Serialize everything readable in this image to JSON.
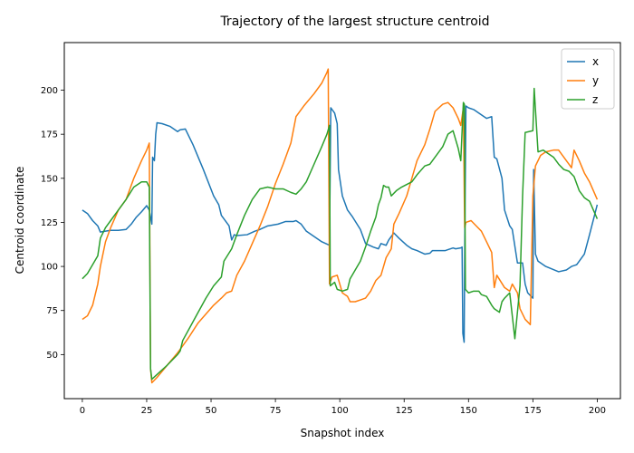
{
  "chart_data": {
    "type": "line",
    "title": "Trajectory of the largest structure centroid",
    "xlabel": "Snapshot index",
    "ylabel": "Centroid coordinate",
    "xlim": [
      -7,
      209
    ],
    "ylim": [
      25,
      227
    ],
    "xticks": [
      0,
      25,
      50,
      75,
      100,
      125,
      150,
      175,
      200
    ],
    "yticks": [
      50,
      75,
      100,
      125,
      150,
      175,
      200
    ],
    "grid": false,
    "legend": "top-right",
    "series": [
      {
        "name": "x",
        "color": "#1f77b4",
        "points": [
          [
            0,
            132
          ],
          [
            2,
            130
          ],
          [
            4,
            126
          ],
          [
            6,
            123
          ],
          [
            7,
            119.5
          ],
          [
            9,
            120
          ],
          [
            11,
            120.5
          ],
          [
            14,
            120.5
          ],
          [
            17,
            121
          ],
          [
            19,
            124
          ],
          [
            21,
            128
          ],
          [
            23,
            131
          ],
          [
            25,
            134.5
          ],
          [
            26,
            132
          ],
          [
            27,
            124
          ],
          [
            27.3,
            162
          ],
          [
            28,
            160
          ],
          [
            28.5,
            175
          ],
          [
            29,
            181.5
          ],
          [
            31,
            181
          ],
          [
            34,
            179.5
          ],
          [
            37,
            176.5
          ],
          [
            38,
            177.5
          ],
          [
            40,
            178
          ],
          [
            43,
            169
          ],
          [
            47,
            155
          ],
          [
            51,
            140
          ],
          [
            53,
            135
          ],
          [
            54,
            129
          ],
          [
            57,
            123
          ],
          [
            58,
            115
          ],
          [
            59,
            118
          ],
          [
            60,
            117.5
          ],
          [
            64,
            118
          ],
          [
            67,
            120
          ],
          [
            69,
            121
          ],
          [
            72,
            123
          ],
          [
            76,
            124
          ],
          [
            79,
            125.5
          ],
          [
            82,
            125.5
          ],
          [
            83,
            126
          ],
          [
            85,
            124
          ],
          [
            87,
            120
          ],
          [
            90,
            117
          ],
          [
            93,
            114
          ],
          [
            96,
            112
          ],
          [
            96.5,
            190
          ],
          [
            97,
            189
          ],
          [
            98,
            187
          ],
          [
            99,
            181
          ],
          [
            99.5,
            155
          ],
          [
            101,
            140
          ],
          [
            103,
            132
          ],
          [
            105,
            128
          ],
          [
            108,
            121
          ],
          [
            110,
            113
          ],
          [
            113,
            111
          ],
          [
            115,
            110
          ],
          [
            116,
            113
          ],
          [
            118,
            112
          ],
          [
            119,
            115
          ],
          [
            121,
            119
          ],
          [
            123,
            116
          ],
          [
            126,
            112
          ],
          [
            128,
            110
          ],
          [
            130,
            109
          ],
          [
            133,
            107
          ],
          [
            135,
            107.5
          ],
          [
            136,
            109
          ],
          [
            138,
            109
          ],
          [
            141,
            109
          ],
          [
            142,
            109.5
          ],
          [
            144,
            110.5
          ],
          [
            145,
            110
          ],
          [
            147,
            110.5
          ],
          [
            147.5,
            111
          ],
          [
            147.8,
            62
          ],
          [
            148,
            60
          ],
          [
            148.3,
            57
          ],
          [
            148.6,
            125
          ],
          [
            149,
            191
          ],
          [
            150,
            190
          ],
          [
            152,
            189
          ],
          [
            155,
            186
          ],
          [
            157,
            184
          ],
          [
            159,
            185
          ],
          [
            160,
            162
          ],
          [
            161,
            161
          ],
          [
            163,
            150
          ],
          [
            164,
            132
          ],
          [
            166,
            123
          ],
          [
            167,
            121
          ],
          [
            169,
            102
          ],
          [
            171,
            102
          ],
          [
            172,
            90
          ],
          [
            173,
            85
          ],
          [
            175,
            82
          ],
          [
            175.3,
            155
          ],
          [
            176,
            107
          ],
          [
            177,
            103
          ],
          [
            180,
            100
          ],
          [
            185,
            97
          ],
          [
            188,
            98
          ],
          [
            190,
            100
          ],
          [
            192,
            101
          ],
          [
            195,
            107
          ],
          [
            197,
            118
          ],
          [
            200,
            135
          ]
        ]
      },
      {
        "name": "y",
        "color": "#ff7f0e",
        "points": [
          [
            0,
            70
          ],
          [
            2,
            72
          ],
          [
            4,
            78
          ],
          [
            5,
            84
          ],
          [
            6,
            90
          ],
          [
            7,
            100
          ],
          [
            9,
            114
          ],
          [
            11,
            122
          ],
          [
            14,
            132
          ],
          [
            17,
            138
          ],
          [
            20,
            150
          ],
          [
            23,
            160
          ],
          [
            25,
            166
          ],
          [
            26,
            170
          ],
          [
            26.5,
            42
          ],
          [
            27,
            34
          ],
          [
            29,
            37
          ],
          [
            33,
            44
          ],
          [
            37,
            51
          ],
          [
            39,
            55
          ],
          [
            41,
            59
          ],
          [
            45,
            68
          ],
          [
            48,
            73
          ],
          [
            51,
            78
          ],
          [
            54,
            82
          ],
          [
            56,
            85
          ],
          [
            58,
            86
          ],
          [
            60,
            95
          ],
          [
            63,
            103
          ],
          [
            66,
            113
          ],
          [
            69,
            123
          ],
          [
            72,
            134
          ],
          [
            75,
            147
          ],
          [
            78,
            158
          ],
          [
            81,
            170
          ],
          [
            83,
            185
          ],
          [
            86,
            191
          ],
          [
            90,
            198
          ],
          [
            93,
            204
          ],
          [
            95,
            210
          ],
          [
            95.5,
            212
          ],
          [
            96,
            90
          ],
          [
            97,
            94
          ],
          [
            99,
            95
          ],
          [
            101,
            85
          ],
          [
            103,
            83
          ],
          [
            104,
            80
          ],
          [
            106,
            80
          ],
          [
            108,
            81
          ],
          [
            110,
            82
          ],
          [
            112,
            86
          ],
          [
            114,
            92
          ],
          [
            116,
            95
          ],
          [
            118,
            105
          ],
          [
            120,
            110
          ],
          [
            121,
            124
          ],
          [
            123,
            130
          ],
          [
            126,
            140
          ],
          [
            128,
            150
          ],
          [
            130,
            160
          ],
          [
            133,
            169
          ],
          [
            135,
            178
          ],
          [
            137,
            188
          ],
          [
            140,
            192
          ],
          [
            142,
            193
          ],
          [
            144,
            190
          ],
          [
            146,
            184
          ],
          [
            147,
            180
          ],
          [
            148,
            190
          ],
          [
            148.5,
            122
          ],
          [
            149,
            125
          ],
          [
            151,
            126
          ],
          [
            153,
            123
          ],
          [
            155,
            120
          ],
          [
            157,
            114
          ],
          [
            159,
            108
          ],
          [
            160,
            88
          ],
          [
            161,
            95
          ],
          [
            164,
            88
          ],
          [
            166,
            86
          ],
          [
            167,
            90
          ],
          [
            169,
            85
          ],
          [
            170,
            76
          ],
          [
            172,
            70
          ],
          [
            174,
            67
          ],
          [
            175,
            140
          ],
          [
            176,
            157
          ],
          [
            178,
            163
          ],
          [
            180,
            165
          ],
          [
            183,
            166
          ],
          [
            185,
            166
          ],
          [
            187,
            162
          ],
          [
            189,
            158
          ],
          [
            190,
            156
          ],
          [
            191,
            166
          ],
          [
            193,
            160
          ],
          [
            195,
            153
          ],
          [
            197,
            148
          ],
          [
            200,
            138
          ]
        ]
      },
      {
        "name": "z",
        "color": "#2ca02c",
        "points": [
          [
            0,
            93
          ],
          [
            2,
            96
          ],
          [
            4,
            101
          ],
          [
            6,
            106
          ],
          [
            7,
            116
          ],
          [
            9,
            122
          ],
          [
            11,
            126
          ],
          [
            14,
            132
          ],
          [
            17,
            138
          ],
          [
            20,
            145
          ],
          [
            23,
            148
          ],
          [
            25,
            148
          ],
          [
            26,
            145
          ],
          [
            26.5,
            42
          ],
          [
            27,
            36
          ],
          [
            30,
            40
          ],
          [
            33,
            44
          ],
          [
            37,
            50
          ],
          [
            38,
            52
          ],
          [
            39,
            58
          ],
          [
            42,
            66
          ],
          [
            45,
            74
          ],
          [
            48,
            82
          ],
          [
            51,
            89
          ],
          [
            54,
            94
          ],
          [
            55,
            103
          ],
          [
            58,
            110
          ],
          [
            60,
            118
          ],
          [
            63,
            129
          ],
          [
            66,
            138
          ],
          [
            69,
            144
          ],
          [
            72,
            145
          ],
          [
            75,
            144
          ],
          [
            78,
            144
          ],
          [
            81,
            142
          ],
          [
            83,
            141
          ],
          [
            85,
            144
          ],
          [
            87,
            148
          ],
          [
            90,
            158
          ],
          [
            93,
            168
          ],
          [
            95,
            175
          ],
          [
            96,
            180
          ],
          [
            96.3,
            89
          ],
          [
            98,
            91
          ],
          [
            99,
            87
          ],
          [
            101,
            86
          ],
          [
            103,
            87
          ],
          [
            104,
            93
          ],
          [
            106,
            98
          ],
          [
            108,
            103
          ],
          [
            110,
            111
          ],
          [
            112,
            120
          ],
          [
            114,
            128
          ],
          [
            115,
            135
          ],
          [
            116,
            139
          ],
          [
            117,
            146
          ],
          [
            118,
            145
          ],
          [
            119,
            145
          ],
          [
            120,
            140
          ],
          [
            122,
            143
          ],
          [
            124,
            145
          ],
          [
            128,
            148
          ],
          [
            130,
            152
          ],
          [
            133,
            157
          ],
          [
            135,
            158
          ],
          [
            138,
            164
          ],
          [
            140,
            168
          ],
          [
            142,
            175
          ],
          [
            144,
            177
          ],
          [
            146,
            167
          ],
          [
            147,
            160
          ],
          [
            148,
            193
          ],
          [
            148.4,
            192
          ],
          [
            148.8,
            87
          ],
          [
            150,
            85
          ],
          [
            152,
            86
          ],
          [
            154,
            86
          ],
          [
            155,
            84
          ],
          [
            157,
            83
          ],
          [
            159,
            78
          ],
          [
            160,
            76
          ],
          [
            162,
            74
          ],
          [
            163,
            80
          ],
          [
            164,
            82
          ],
          [
            166,
            85
          ],
          [
            168,
            59
          ],
          [
            170,
            89
          ],
          [
            171,
            140
          ],
          [
            172,
            176
          ],
          [
            175,
            177
          ],
          [
            175.5,
            201
          ],
          [
            177,
            165
          ],
          [
            179,
            166
          ],
          [
            181,
            164
          ],
          [
            183,
            162
          ],
          [
            185,
            158
          ],
          [
            187,
            155
          ],
          [
            189,
            154
          ],
          [
            191,
            151
          ],
          [
            193,
            143
          ],
          [
            195,
            139
          ],
          [
            197,
            137
          ],
          [
            200,
            127
          ]
        ]
      }
    ]
  }
}
